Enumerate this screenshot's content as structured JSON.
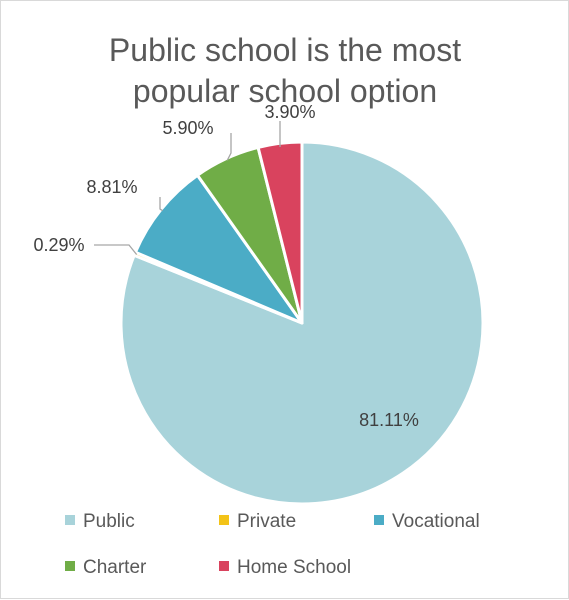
{
  "chart_data": {
    "type": "pie",
    "title": "Public school is the most popular school option",
    "title_lines": [
      "Public school is the most",
      "popular school option"
    ],
    "categories": [
      "Public",
      "Private",
      "Vocational",
      "Charter",
      "Home School"
    ],
    "values": [
      81.11,
      0.29,
      8.81,
      5.9,
      3.9
    ],
    "data_labels": [
      "81.11%",
      "0.29%",
      "8.81%",
      "5.90%",
      "3.90%"
    ],
    "colors": [
      "#a8d3da",
      "#f3c318",
      "#4bacc6",
      "#70ad47",
      "#d9435e"
    ],
    "start_angle_deg": 0,
    "direction": "clockwise",
    "legend_position": "bottom",
    "leader_lines": true
  }
}
